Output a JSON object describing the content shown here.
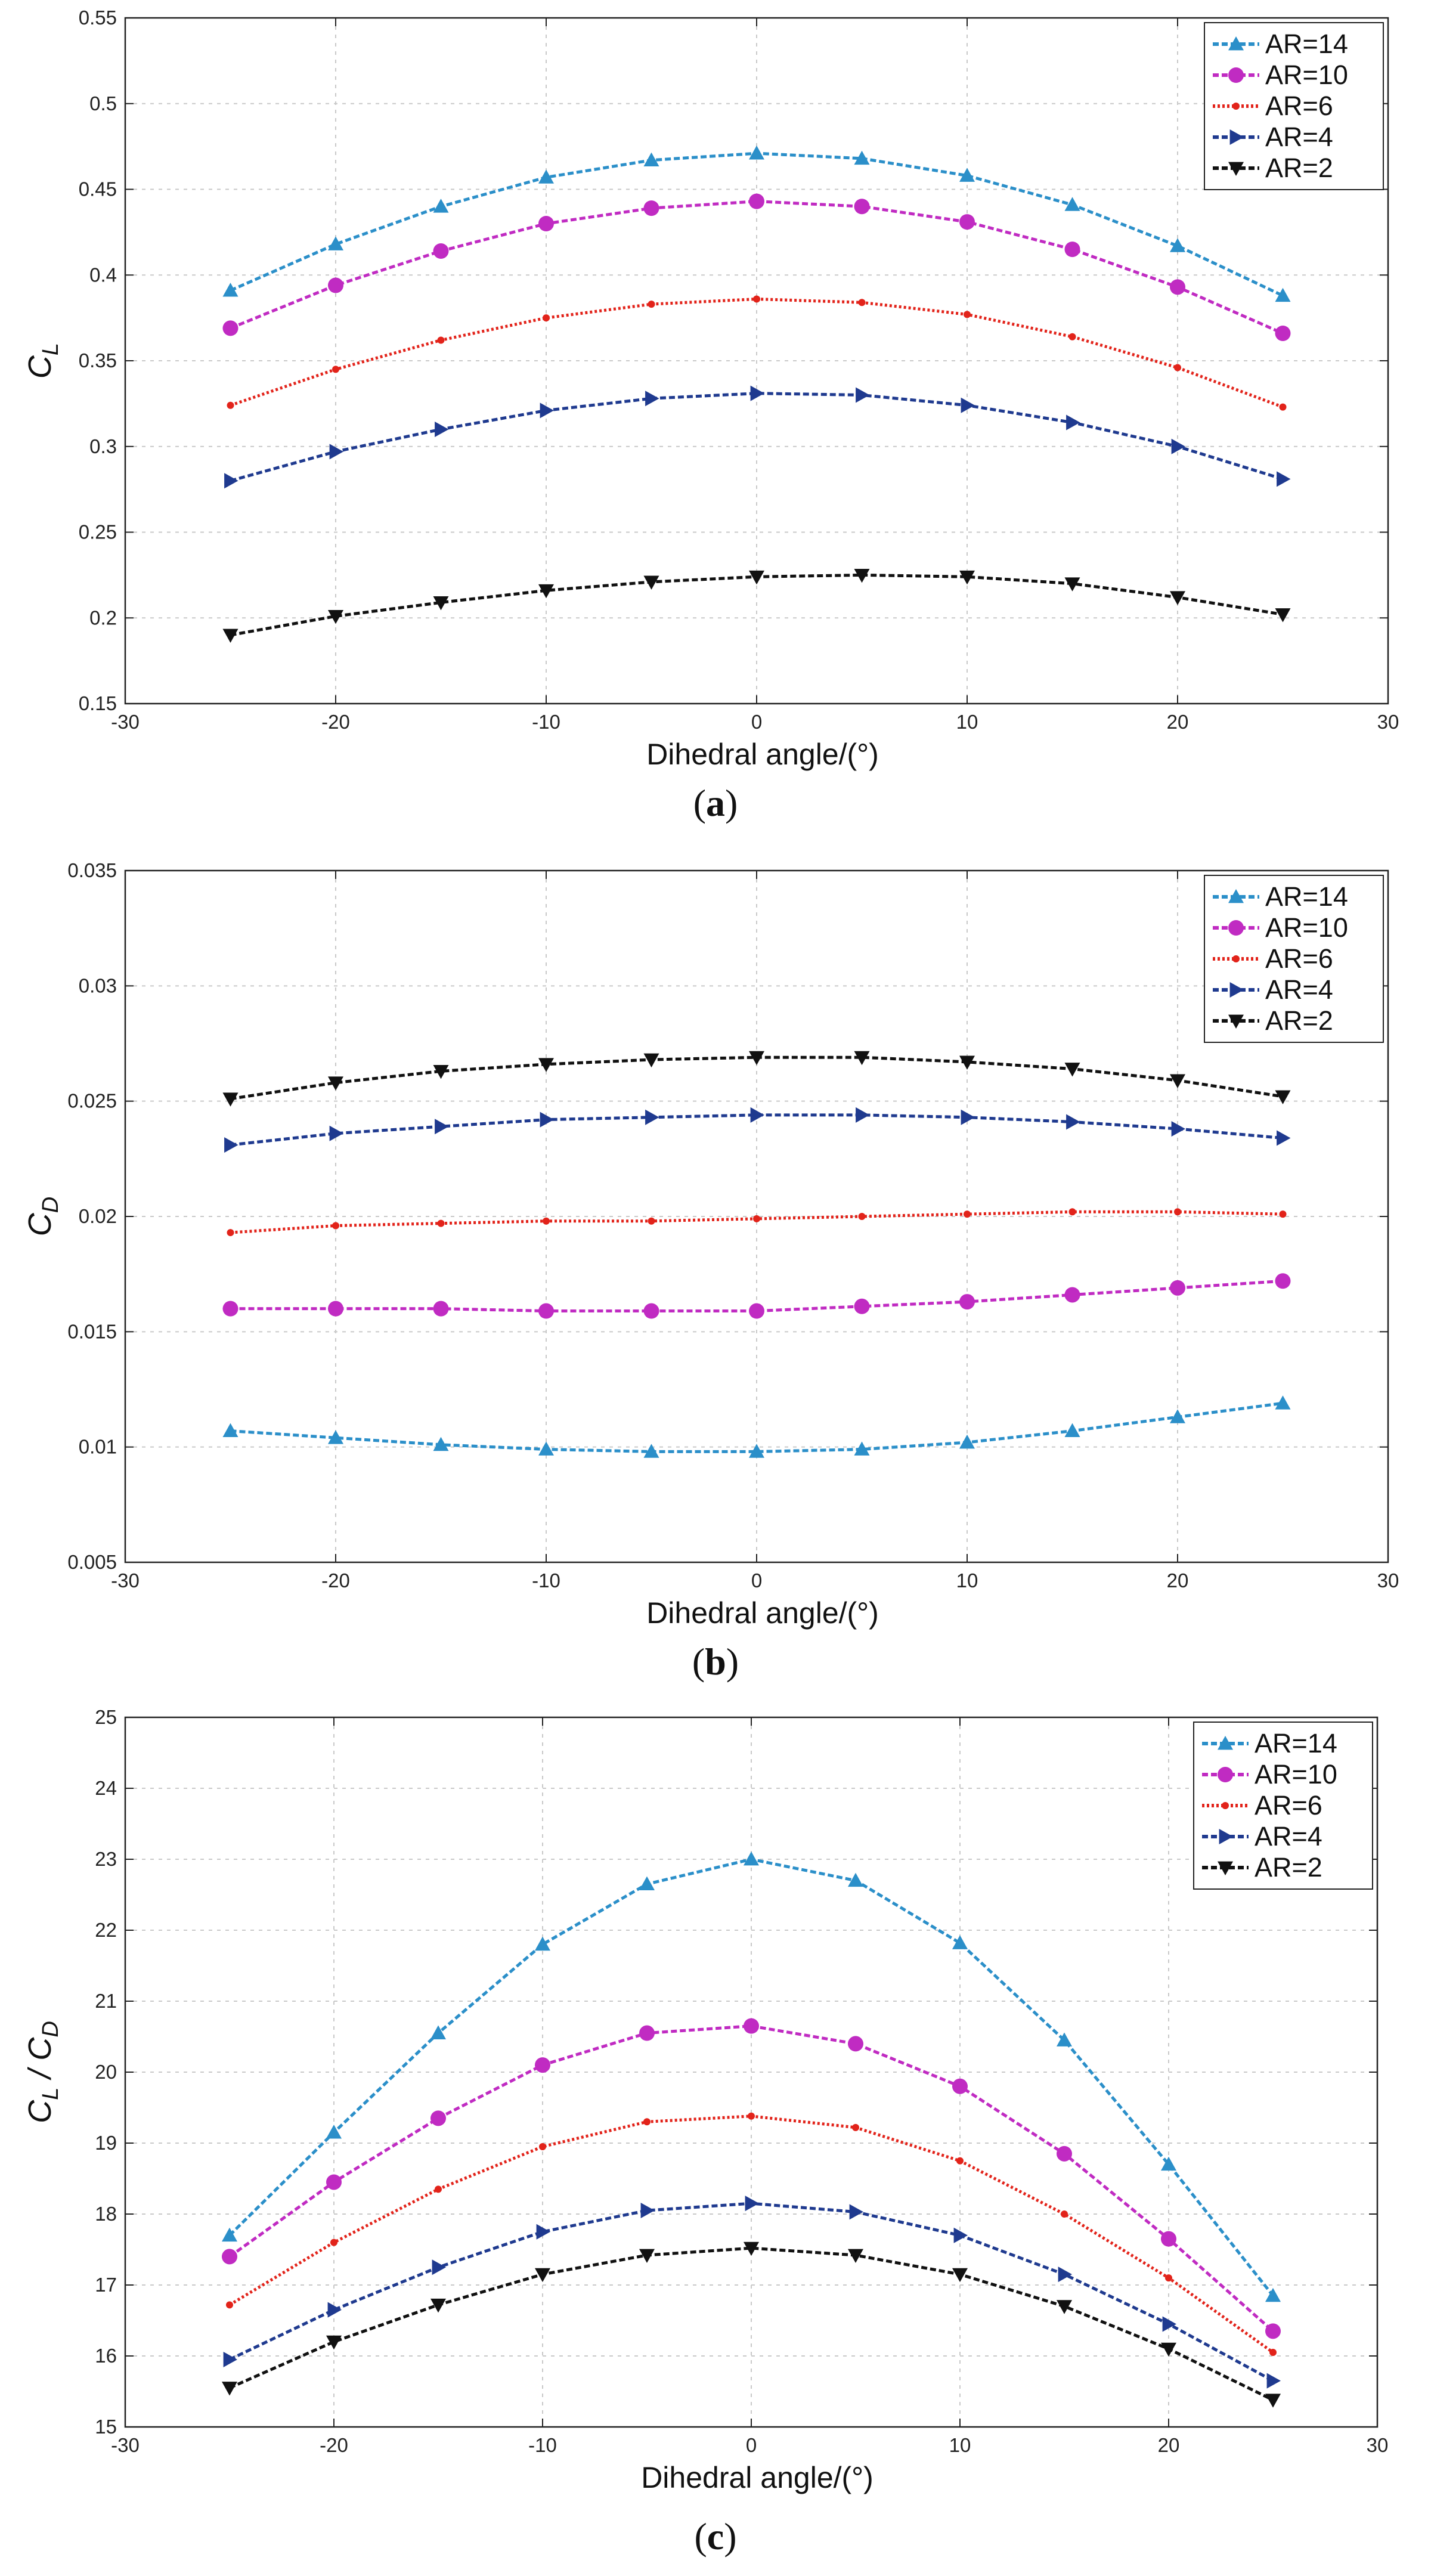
{
  "chart_data": [
    {
      "type": "line",
      "panel_label": "a",
      "x": [
        -25,
        -20,
        -15,
        -10,
        -5,
        0,
        5,
        10,
        15,
        20,
        25
      ],
      "xlabel": "Dihedral angle/(°)",
      "ylabel": {
        "main": "C",
        "sub": "L"
      },
      "xlim": [
        -30,
        30
      ],
      "ylim": [
        0.15,
        0.55
      ],
      "xticks": [
        "-30",
        "-20",
        "-10",
        "0",
        "10",
        "20",
        "30"
      ],
      "yticks": [
        "0.15",
        "0.2",
        "0.25",
        "0.3",
        "0.35",
        "0.4",
        "0.45",
        "0.5",
        "0.55"
      ],
      "grid": true,
      "legend_position": "top-right",
      "series": [
        {
          "name": "AR=14",
          "color": "#2b8fc9",
          "marker": "triangle-up",
          "values": [
            0.391,
            0.418,
            0.44,
            0.457,
            0.467,
            0.471,
            0.468,
            0.458,
            0.441,
            0.417,
            0.388
          ]
        },
        {
          "name": "AR=10",
          "color": "#c02bc2",
          "marker": "circle",
          "values": [
            0.369,
            0.394,
            0.414,
            0.43,
            0.439,
            0.443,
            0.44,
            0.431,
            0.415,
            0.393,
            0.366
          ]
        },
        {
          "name": "AR=6",
          "color": "#e2231a",
          "marker": "dot",
          "values": [
            0.324,
            0.345,
            0.362,
            0.375,
            0.383,
            0.386,
            0.384,
            0.377,
            0.364,
            0.346,
            0.323
          ]
        },
        {
          "name": "AR=4",
          "color": "#1f3a8f",
          "marker": "triangle-right",
          "values": [
            0.28,
            0.297,
            0.31,
            0.321,
            0.328,
            0.331,
            0.33,
            0.324,
            0.314,
            0.3,
            0.281
          ]
        },
        {
          "name": "AR=2",
          "color": "#111111",
          "marker": "triangle-down",
          "values": [
            0.19,
            0.201,
            0.209,
            0.216,
            0.221,
            0.224,
            0.225,
            0.224,
            0.22,
            0.212,
            0.202
          ]
        }
      ]
    },
    {
      "type": "line",
      "panel_label": "b",
      "x": [
        -25,
        -20,
        -15,
        -10,
        -5,
        0,
        5,
        10,
        15,
        20,
        25
      ],
      "xlabel": "Dihedral angle/(°)",
      "ylabel": {
        "main": "C",
        "sub": "D"
      },
      "xlim": [
        -30,
        30
      ],
      "ylim": [
        0.005,
        0.035
      ],
      "xticks": [
        "-30",
        "-20",
        "-10",
        "0",
        "10",
        "20",
        "30"
      ],
      "yticks": [
        "0.005",
        "0.01",
        "0.015",
        "0.02",
        "0.025",
        "0.03",
        "0.035"
      ],
      "grid": true,
      "legend_position": "top-right",
      "series": [
        {
          "name": "AR=14",
          "color": "#2b8fc9",
          "marker": "triangle-up",
          "values": [
            0.0107,
            0.0104,
            0.0101,
            0.0099,
            0.0098,
            0.0098,
            0.0099,
            0.0102,
            0.0107,
            0.0113,
            0.0119
          ]
        },
        {
          "name": "AR=10",
          "color": "#c02bc2",
          "marker": "circle",
          "values": [
            0.016,
            0.016,
            0.016,
            0.0159,
            0.0159,
            0.0159,
            0.0161,
            0.0163,
            0.0166,
            0.0169,
            0.0172
          ]
        },
        {
          "name": "AR=6",
          "color": "#e2231a",
          "marker": "dot",
          "values": [
            0.0193,
            0.0196,
            0.0197,
            0.0198,
            0.0198,
            0.0199,
            0.02,
            0.0201,
            0.0202,
            0.0202,
            0.0201
          ]
        },
        {
          "name": "AR=4",
          "color": "#1f3a8f",
          "marker": "triangle-right",
          "values": [
            0.0231,
            0.0236,
            0.0239,
            0.0242,
            0.0243,
            0.0244,
            0.0244,
            0.0243,
            0.0241,
            0.0238,
            0.0234
          ]
        },
        {
          "name": "AR=2",
          "color": "#111111",
          "marker": "triangle-down",
          "values": [
            0.0251,
            0.0258,
            0.0263,
            0.0266,
            0.0268,
            0.0269,
            0.0269,
            0.0267,
            0.0264,
            0.0259,
            0.0252
          ]
        }
      ]
    },
    {
      "type": "line",
      "panel_label": "c",
      "x": [
        -25,
        -20,
        -15,
        -10,
        -5,
        0,
        5,
        10,
        15,
        20,
        25
      ],
      "xlabel": "Dihedral angle/(°)",
      "ylabel": {
        "main": "C",
        "sub": "L",
        "mid": " / C",
        "sub2": "D"
      },
      "xlim": [
        -30,
        30
      ],
      "ylim": [
        15,
        25
      ],
      "xticks": [
        "-30",
        "-20",
        "-10",
        "0",
        "10",
        "20",
        "30"
      ],
      "yticks": [
        "15",
        "16",
        "17",
        "18",
        "19",
        "20",
        "21",
        "22",
        "23",
        "24",
        "25"
      ],
      "grid": true,
      "legend_position": "top-right",
      "series": [
        {
          "name": "AR=14",
          "color": "#2b8fc9",
          "marker": "triangle-up",
          "values": [
            17.7,
            19.15,
            20.55,
            21.8,
            22.65,
            23.0,
            22.7,
            21.82,
            20.45,
            18.7,
            16.85
          ]
        },
        {
          "name": "AR=10",
          "color": "#c02bc2",
          "marker": "circle",
          "values": [
            17.4,
            18.45,
            19.35,
            20.1,
            20.55,
            20.65,
            20.4,
            19.8,
            18.85,
            17.65,
            16.35
          ]
        },
        {
          "name": "AR=6",
          "color": "#e2231a",
          "marker": "dot",
          "values": [
            16.72,
            17.6,
            18.35,
            18.95,
            19.3,
            19.38,
            19.22,
            18.75,
            18.0,
            17.1,
            16.05
          ]
        },
        {
          "name": "AR=4",
          "color": "#1f3a8f",
          "marker": "triangle-right",
          "values": [
            15.95,
            16.65,
            17.25,
            17.75,
            18.05,
            18.15,
            18.03,
            17.7,
            17.15,
            16.45,
            15.65
          ]
        },
        {
          "name": "AR=2",
          "color": "#111111",
          "marker": "triangle-down",
          "values": [
            15.55,
            16.2,
            16.72,
            17.15,
            17.42,
            17.52,
            17.42,
            17.15,
            16.7,
            16.1,
            15.38
          ]
        }
      ]
    }
  ]
}
